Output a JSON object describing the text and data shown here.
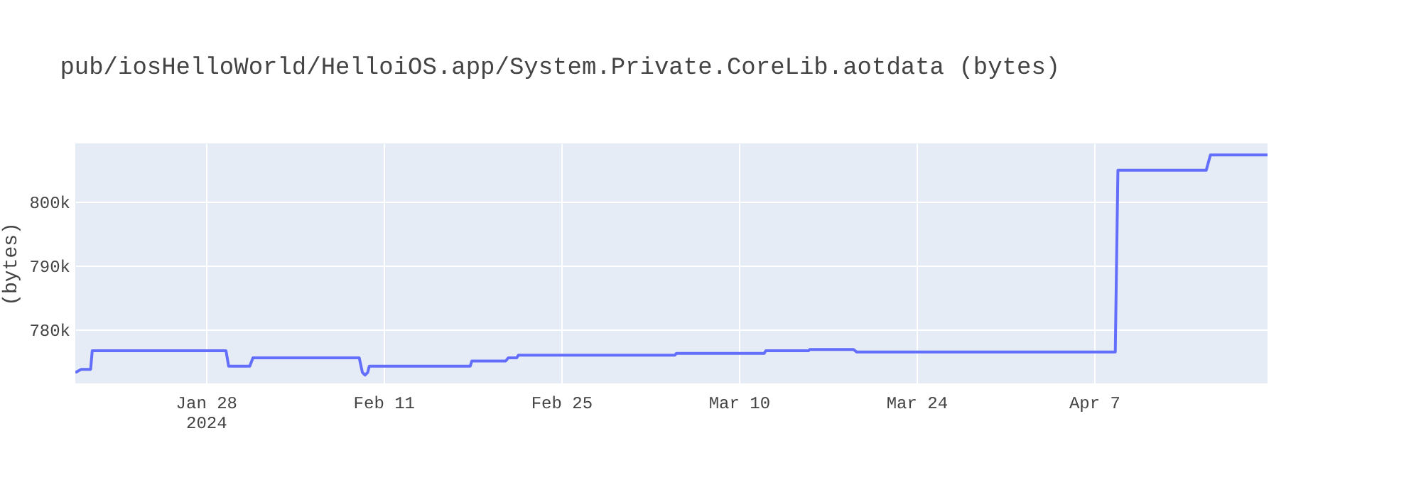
{
  "chart_data": {
    "type": "line",
    "title": "pub/iosHelloWorld/HelloiOS.app/System.Private.CoreLib.aotdata (bytes)",
    "ylabel": "(bytes)",
    "x": [
      "2024-01-17T17:00",
      "2024-01-18T04:00",
      "2024-01-18T22:00",
      "2024-01-19T01:00",
      "2024-01-29T14:00",
      "2024-01-29T19:00",
      "2024-01-31T11:00",
      "2024-01-31T17:00",
      "2024-02-09T02:00",
      "2024-02-09T08:00",
      "2024-02-09T13:00",
      "2024-02-09T18:00",
      "2024-02-09T21:00",
      "2024-02-17T20:00",
      "2024-02-17T23:00",
      "2024-02-20T15:00",
      "2024-02-20T20:00",
      "2024-02-21T12:00",
      "2024-02-21T15:00",
      "2024-03-04T23:00",
      "2024-03-05T02:00",
      "2024-03-12T00:00",
      "2024-03-12T03:00",
      "2024-03-15T12:00",
      "2024-03-15T14:00",
      "2024-03-19T01:00",
      "2024-03-19T07:00",
      "2024-04-08T16:00",
      "2024-04-08T21:00",
      "2024-04-15T20:00",
      "2024-04-16T04:00",
      "2024-04-20T16:00"
    ],
    "series": [
      {
        "color": "#636efa",
        "values": [
          773300,
          773800,
          773800,
          776700,
          776700,
          774300,
          774300,
          775600,
          775600,
          773300,
          772900,
          773300,
          774300,
          774300,
          775100,
          775100,
          775600,
          775600,
          776000,
          776000,
          776300,
          776300,
          776700,
          776700,
          776900,
          776900,
          776500,
          776500,
          804900,
          804900,
          807300,
          807300
        ]
      }
    ],
    "xlim": [
      "2024-01-17T17:00",
      "2024-04-20T16:00"
    ],
    "xticks": [
      {
        "value": "2024-01-28",
        "label": "Jan 28\n2024"
      },
      {
        "value": "2024-02-11",
        "label": "Feb 11"
      },
      {
        "value": "2024-02-25",
        "label": "Feb 25"
      },
      {
        "value": "2024-03-10",
        "label": "Mar 10"
      },
      {
        "value": "2024-03-24",
        "label": "Mar 24"
      },
      {
        "value": "2024-04-07",
        "label": "Apr 7"
      }
    ],
    "ylim": [
      771600,
      809100
    ],
    "yticks": [
      {
        "value": 780000,
        "label": "780k"
      },
      {
        "value": 790000,
        "label": "790k"
      },
      {
        "value": 800000,
        "label": "800k"
      }
    ],
    "grid": true,
    "marker": "none",
    "line_style": "solid"
  }
}
